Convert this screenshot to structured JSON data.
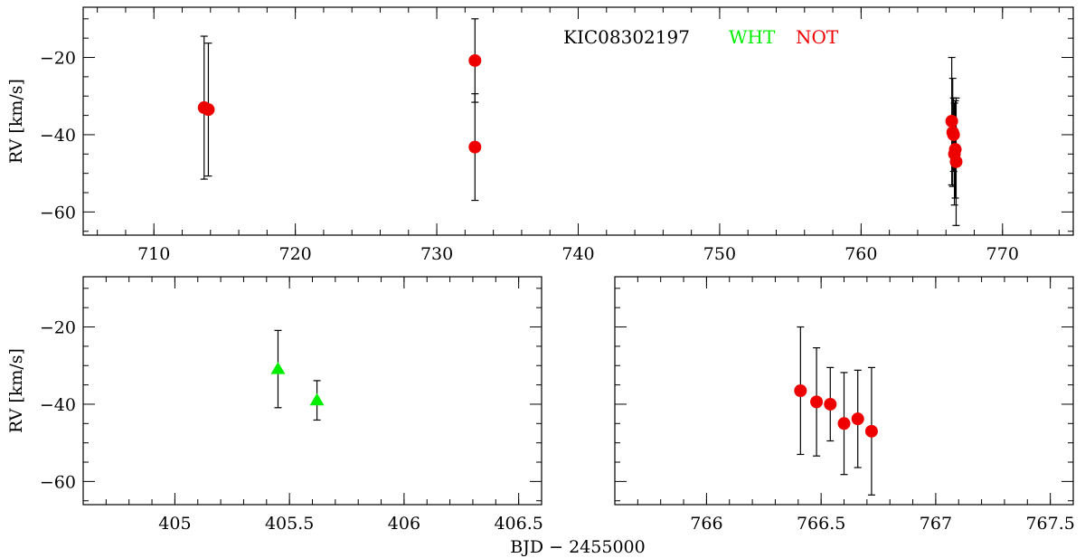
{
  "colors": {
    "WHT": "#00ee00",
    "NOT": "#ee0000",
    "axis": "#000000",
    "errorbar": "#000000"
  },
  "legend": {
    "object": "KIC08302197",
    "entries": [
      {
        "label": "WHT",
        "color": "#00ee00"
      },
      {
        "label": "NOT",
        "color": "#ee0000"
      }
    ]
  },
  "xlabel": "BJD − 2455000",
  "chart_data": [
    {
      "type": "scatter",
      "panel": "top",
      "ylabel": "RV [km/s]",
      "xlim": [
        705,
        775
      ],
      "ylim": [
        -66,
        -7
      ],
      "xticks": [
        710,
        720,
        730,
        740,
        750,
        760,
        770
      ],
      "xtick_labels": [
        "710",
        "720",
        "730",
        "740",
        "750",
        "760",
        "770"
      ],
      "yticks": [
        -20,
        -40,
        -60
      ],
      "ytick_labels": [
        "−20",
        "−40",
        "−60"
      ],
      "series": [
        {
          "name": "NOT",
          "marker": "circle",
          "color": "#ee0000",
          "points": [
            {
              "x": 713.55,
              "y": -33.0,
              "err": 18.5
            },
            {
              "x": 713.85,
              "y": -33.5,
              "err": 17.2
            },
            {
              "x": 732.7,
              "y": -20.8,
              "err": 10.8
            },
            {
              "x": 732.7,
              "y": -43.2,
              "err": 13.8
            },
            {
              "x": 766.41,
              "y": -36.5,
              "err": 16.5
            },
            {
              "x": 766.48,
              "y": -39.4,
              "err": 14.0
            },
            {
              "x": 766.54,
              "y": -40.0,
              "err": 9.5
            },
            {
              "x": 766.6,
              "y": -45.0,
              "err": 13.2
            },
            {
              "x": 766.66,
              "y": -43.8,
              "err": 12.6
            },
            {
              "x": 766.72,
              "y": -47.0,
              "err": 16.5
            }
          ]
        }
      ]
    },
    {
      "type": "scatter",
      "panel": "bottom-left",
      "ylabel": "RV [km/s]",
      "xlim": [
        404.6,
        406.6
      ],
      "ylim": [
        -66,
        -7
      ],
      "xticks": [
        405,
        405.5,
        406,
        406.5
      ],
      "xtick_labels": [
        "405",
        "405.5",
        "406",
        "406.5"
      ],
      "yticks": [
        -20,
        -40,
        -60
      ],
      "ytick_labels": [
        "−20",
        "−40",
        "−60"
      ],
      "series": [
        {
          "name": "WHT",
          "marker": "triangle",
          "color": "#00ee00",
          "points": [
            {
              "x": 405.45,
              "y": -30.9,
              "err": 10.0
            },
            {
              "x": 405.62,
              "y": -39.0,
              "err": 5.1
            }
          ]
        }
      ]
    },
    {
      "type": "scatter",
      "panel": "bottom-right",
      "ylabel": "",
      "xlim": [
        765.6,
        767.6
      ],
      "ylim": [
        -66,
        -7
      ],
      "xticks": [
        766,
        766.5,
        767,
        767.5
      ],
      "xtick_labels": [
        "766",
        "766.5",
        "767",
        "767.5"
      ],
      "yticks": [
        -20,
        -40,
        -60
      ],
      "ytick_labels": [
        "",
        "",
        ""
      ],
      "series": [
        {
          "name": "NOT",
          "marker": "circle",
          "color": "#ee0000",
          "points": [
            {
              "x": 766.41,
              "y": -36.5,
              "err": 16.5
            },
            {
              "x": 766.48,
              "y": -39.4,
              "err": 14.0
            },
            {
              "x": 766.54,
              "y": -40.0,
              "err": 9.5
            },
            {
              "x": 766.6,
              "y": -45.0,
              "err": 13.2
            },
            {
              "x": 766.66,
              "y": -43.8,
              "err": 12.6
            },
            {
              "x": 766.72,
              "y": -47.0,
              "err": 16.5
            }
          ]
        }
      ]
    }
  ]
}
